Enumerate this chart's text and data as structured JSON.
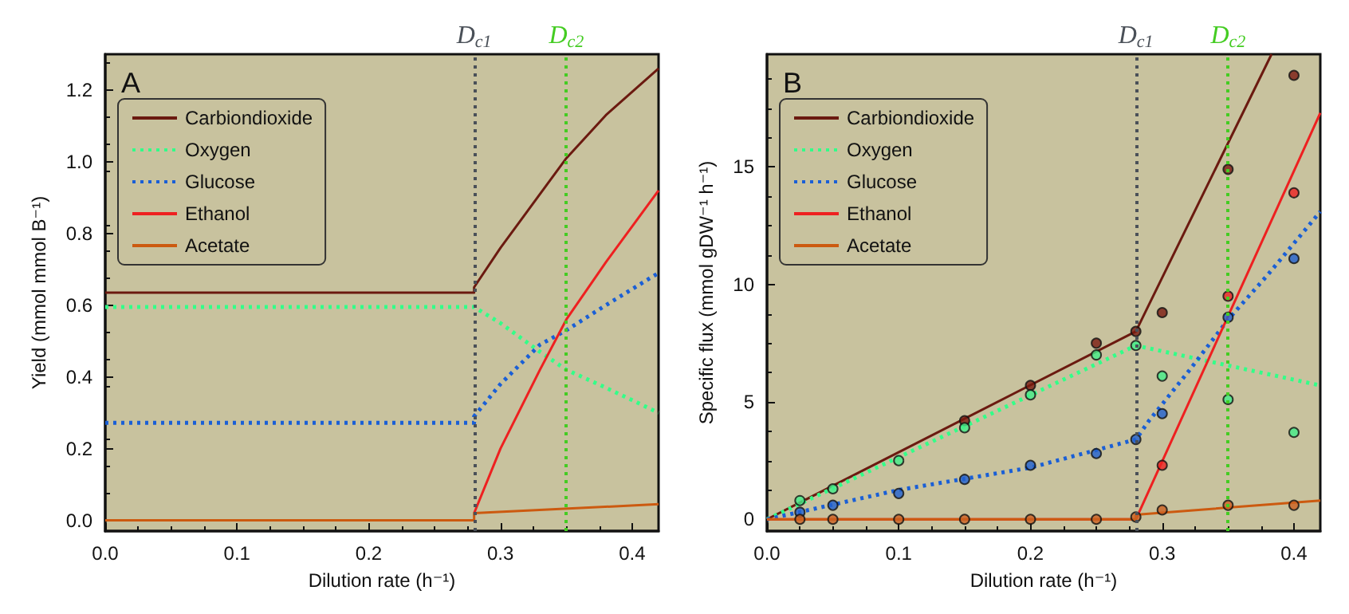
{
  "chart_data": [
    {
      "type": "line",
      "title": "A",
      "xlabel": "Dilution rate (h⁻¹)",
      "ylabel": "Yield (mmol mmol B⁻¹)",
      "xlim": [
        0,
        0.42
      ],
      "xticks": [
        {
          "value": 0,
          "label": "0.0"
        },
        0.1,
        0.2,
        0.3,
        0.4
      ],
      "ylim": [
        -0.03,
        1.3
      ],
      "yticks": [
        {
          "value": 0,
          "label": "0.0"
        },
        0.2,
        0.4,
        0.6,
        0.8,
        {
          "value": 1,
          "label": "1.0"
        },
        1.2
      ],
      "grid": false,
      "legend": "top left",
      "series": [
        {
          "name": "Carbiondioxide",
          "color": "#6b1a10",
          "line_style": "solid",
          "x": [
            0,
            0.28,
            0.28,
            0.3,
            0.32,
            0.35,
            0.38,
            0.42
          ],
          "values": [
            0.635,
            0.635,
            0.65,
            0.76,
            0.86,
            1.01,
            1.13,
            1.26
          ]
        },
        {
          "name": "Oxygen",
          "color": "#33ff88",
          "line_style": "dotted",
          "x": [
            0,
            0.28,
            0.3,
            0.33,
            0.35,
            0.38,
            0.42
          ],
          "values": [
            0.595,
            0.595,
            0.55,
            0.47,
            0.42,
            0.37,
            0.3
          ]
        },
        {
          "name": "Glucose",
          "color": "#1a5fd6",
          "line_style": "dotted",
          "x": [
            0,
            0.28,
            0.28,
            0.3,
            0.33,
            0.35,
            0.38,
            0.42
          ],
          "values": [
            0.272,
            0.272,
            0.29,
            0.38,
            0.49,
            0.53,
            0.6,
            0.69
          ]
        },
        {
          "name": "Ethanol",
          "color": "#ee2020",
          "line_style": "solid",
          "x": [
            0.28,
            0.3,
            0.33,
            0.35,
            0.38,
            0.42
          ],
          "values": [
            0.02,
            0.2,
            0.42,
            0.56,
            0.72,
            0.92
          ]
        },
        {
          "name": "Acetate",
          "color": "#cc5a10",
          "line_style": "solid",
          "x": [
            0,
            0.28,
            0.28,
            0.42
          ],
          "values": [
            0,
            0,
            0.02,
            0.045
          ]
        }
      ],
      "ref_lines": [
        {
          "axis": "x",
          "value": 0.28,
          "label": "D$_{c1}$",
          "color": "#4a5058",
          "line_style": "dotted"
        },
        {
          "axis": "x",
          "value": 0.35,
          "label": "D$_{c2}$",
          "color": "#44cc22",
          "line_style": "dotted"
        }
      ]
    },
    {
      "type": "line",
      "title": "B",
      "xlabel": "Dilution rate (h⁻¹)",
      "ylabel": "Specific flux (mmol gDW⁻¹ h⁻¹)",
      "xlim": [
        0,
        0.42
      ],
      "xticks": [
        {
          "value": 0,
          "label": "0.0"
        },
        0.1,
        0.2,
        0.3,
        0.4
      ],
      "ylim": [
        -0.5,
        19.8
      ],
      "yticks": [
        0,
        5,
        10,
        15
      ],
      "grid": false,
      "legend": "top left",
      "series": [
        {
          "name": "Carbiondioxide",
          "color": "#6b1a10",
          "line_style": "solid",
          "x": [
            0,
            0.28,
            0.383
          ],
          "values": [
            0,
            8.0,
            19.8
          ]
        },
        {
          "name": "Oxygen",
          "color": "#33ff88",
          "line_style": "dotted",
          "x": [
            0,
            0.28,
            0.42
          ],
          "values": [
            0,
            7.4,
            5.7
          ]
        },
        {
          "name": "Glucose",
          "color": "#1a5fd6",
          "line_style": "dotted",
          "x": [
            0,
            0.1,
            0.2,
            0.28,
            0.29,
            0.32,
            0.35,
            0.38,
            0.42
          ],
          "values": [
            0,
            1.25,
            2.2,
            3.4,
            4.2,
            6.3,
            8.5,
            10.4,
            13.1
          ]
        },
        {
          "name": "Ethanol",
          "color": "#ee2020",
          "line_style": "solid",
          "x": [
            0,
            0.28,
            0.42
          ],
          "values": [
            0,
            0,
            17.3
          ]
        },
        {
          "name": "Acetate",
          "color": "#cc5a10",
          "line_style": "solid",
          "x": [
            0,
            0.28,
            0.28,
            0.42
          ],
          "values": [
            0,
            0,
            0.2,
            0.8
          ]
        },
        {
          "type": "scatter",
          "color": "#7a1a10",
          "marker": "circle",
          "x": [
            0.15,
            0.2,
            0.25,
            0.28,
            0.3,
            0.35,
            0.4
          ],
          "values": [
            4.2,
            5.7,
            7.5,
            8.0,
            8.8,
            14.9,
            18.9
          ]
        },
        {
          "type": "scatter",
          "color": "#44ee88",
          "marker": "circle",
          "x": [
            0.025,
            0.05,
            0.1,
            0.15,
            0.2,
            0.25,
            0.28,
            0.3,
            0.35,
            0.4
          ],
          "values": [
            0.8,
            1.3,
            2.5,
            3.9,
            5.3,
            7.0,
            7.4,
            6.1,
            5.1,
            3.7
          ]
        },
        {
          "type": "scatter",
          "color": "#2060d0",
          "marker": "circle",
          "x": [
            0.025,
            0.05,
            0.1,
            0.15,
            0.2,
            0.25,
            0.28,
            0.3,
            0.35,
            0.4
          ],
          "values": [
            0.3,
            0.6,
            1.1,
            1.7,
            2.3,
            2.8,
            3.4,
            4.5,
            8.6,
            11.1
          ]
        },
        {
          "type": "scatter",
          "color": "#ee2222",
          "marker": "circle",
          "x": [
            0.3,
            0.35,
            0.4
          ],
          "values": [
            2.3,
            9.5,
            13.9
          ]
        },
        {
          "type": "scatter",
          "color": "#cc6020",
          "marker": "circle",
          "x": [
            0.025,
            0.05,
            0.1,
            0.15,
            0.2,
            0.25,
            0.28,
            0.3,
            0.35,
            0.4
          ],
          "values": [
            0,
            0,
            0,
            0,
            0,
            0,
            0.1,
            0.4,
            0.6,
            0.6
          ]
        }
      ],
      "ref_lines": [
        {
          "axis": "x",
          "value": 0.28,
          "label": "D$_{c1}$",
          "color": "#4a5058",
          "line_style": "dotted"
        },
        {
          "axis": "x",
          "value": 0.35,
          "label": "D$_{c2}$",
          "color": "#44cc22",
          "line_style": "dotted"
        }
      ]
    }
  ]
}
